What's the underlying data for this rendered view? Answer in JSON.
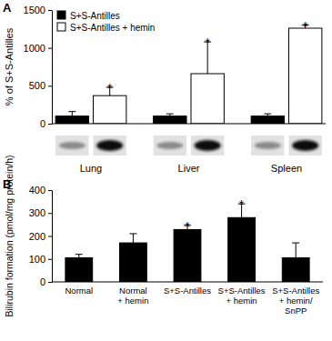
{
  "chart_data": [
    {
      "type": "bar",
      "title": "A",
      "ylabel": "% of S+S-Antilles",
      "categories": [
        "Lung",
        "Liver",
        "Spleen"
      ],
      "series": [
        {
          "name": "S+S-Antilles",
          "color": "#000000",
          "values": [
            100,
            100,
            100
          ],
          "errors": [
            60,
            30,
            30
          ]
        },
        {
          "name": "S+S-Antilles + hemin",
          "color": "#ffffff",
          "values": [
            370,
            660,
            1260
          ],
          "errors": [
            110,
            420,
            40
          ]
        }
      ],
      "ylim": [
        0,
        1500
      ],
      "yticks": [
        0,
        500,
        1000,
        1500
      ],
      "legend": "upper left",
      "annotations": [
        {
          "text": "*",
          "category": "Lung",
          "series": "S+S-Antilles + hemin"
        },
        {
          "text": "*",
          "category": "Liver",
          "series": "S+S-Antilles + hemin"
        },
        {
          "text": "*",
          "category": "Spleen",
          "series": "S+S-Antilles + hemin"
        }
      ]
    },
    {
      "type": "bar",
      "title": "B",
      "ylabel": "Bilirubin formation (pmol/mg protein/h)",
      "categories": [
        "Normal",
        "Normal\n+ hemin",
        "S+S-Antilles",
        "S+S-Antilles\n+ hemin",
        "S+S-Antilles\n+ hemin/\nSnPP"
      ],
      "values": [
        105,
        170,
        228,
        280,
        105
      ],
      "errors": [
        15,
        40,
        18,
        60,
        65
      ],
      "color": "#000000",
      "ylim": [
        0,
        400
      ],
      "yticks": [
        0,
        100,
        200,
        300,
        400
      ],
      "annotations": [
        {
          "text": "*",
          "category": "S+S-Antilles"
        },
        {
          "text": "*",
          "category": "S+S-Antilles\n+ hemin"
        }
      ]
    }
  ]
}
